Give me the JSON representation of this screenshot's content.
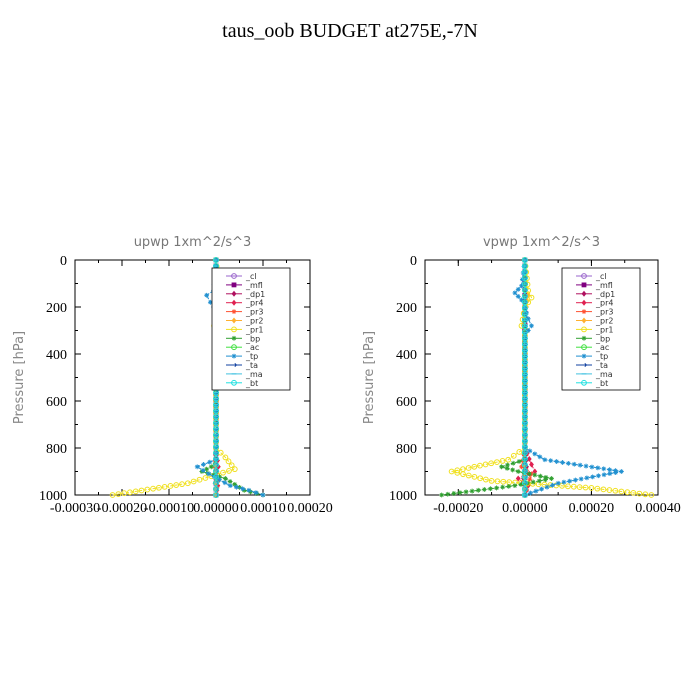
{
  "figure": {
    "title": "taus_oob  BUDGET at275E,-7N"
  },
  "chart_data": [
    {
      "type": "line",
      "title": "upwp   1xm^2/s^3",
      "xlabel": "",
      "ylabel": "Pressure [hPa]",
      "xlim": [
        -0.0003,
        0.0002
      ],
      "ylim": [
        1000,
        0
      ],
      "x_ticks": [
        -0.0003,
        -0.0002,
        -0.0001,
        0.0,
        0.0001,
        0.0002
      ],
      "x_tick_labels": [
        "-0.00030",
        "-0.00020",
        "-0.00010",
        "0.00000",
        "0.00010",
        "0.00020"
      ],
      "y_ticks": [
        0,
        200,
        400,
        600,
        800,
        1000
      ],
      "y_tick_labels": [
        "0",
        "200",
        "400",
        "600",
        "800",
        "1000"
      ],
      "legend": "top-right",
      "series": [
        {
          "name": "_cl",
          "color": "#9a66cc",
          "marker": "circle",
          "points": [
            [
              0,
              0
            ],
            [
              0,
              500
            ],
            [
              0,
              1000
            ]
          ]
        },
        {
          "name": "_mfl",
          "color": "#800080",
          "marker": "square",
          "points": [
            [
              0,
              0
            ],
            [
              0,
              200
            ],
            [
              0,
              500
            ],
            [
              0,
              800
            ],
            [
              0,
              1000
            ]
          ]
        },
        {
          "name": "_dp1",
          "color": "#b0105f",
          "marker": "diamond",
          "points": [
            [
              0,
              0
            ],
            [
              0,
              500
            ],
            [
              2e-06,
              900
            ],
            [
              -2e-06,
              950
            ],
            [
              0,
              1000
            ]
          ]
        },
        {
          "name": "_pr4",
          "color": "#e02050",
          "marker": "diamond",
          "points": [
            [
              0,
              0
            ],
            [
              0,
              800
            ],
            [
              5e-06,
              880
            ],
            [
              -4e-06,
              920
            ],
            [
              4e-06,
              960
            ],
            [
              0,
              1000
            ]
          ]
        },
        {
          "name": "_pr3",
          "color": "#ff5030",
          "marker": "star",
          "points": [
            [
              0,
              0
            ],
            [
              0,
              800
            ],
            [
              -3e-06,
              880
            ],
            [
              4e-06,
              940
            ],
            [
              0,
              1000
            ]
          ]
        },
        {
          "name": "_pr2",
          "color": "#ffb030",
          "marker": "diamond",
          "points": [
            [
              0,
              0
            ],
            [
              5e-06,
              150
            ],
            [
              1.2e-05,
              180
            ],
            [
              1e-05,
              200
            ],
            [
              0,
              250
            ],
            [
              0,
              800
            ],
            [
              0,
              1000
            ]
          ]
        },
        {
          "name": "_pr1",
          "color": "#f0e020",
          "marker": "circle",
          "points": [
            [
              0,
              0
            ],
            [
              8e-06,
              160
            ],
            [
              1.2e-05,
              190
            ],
            [
              0,
              230
            ],
            [
              -4e-06,
              280
            ],
            [
              3e-06,
              300
            ],
            [
              0,
              320
            ],
            [
              0,
              800
            ],
            [
              2e-05,
              840
            ],
            [
              4e-05,
              890
            ],
            [
              -6e-05,
              950
            ],
            [
              -0.00022,
              1000
            ]
          ]
        },
        {
          "name": "_bp",
          "color": "#30a030",
          "marker": "star",
          "points": [
            [
              0,
              0
            ],
            [
              0,
              850
            ],
            [
              -1e-05,
              880
            ],
            [
              -3e-05,
              900
            ],
            [
              2e-05,
              930
            ],
            [
              6e-05,
              980
            ],
            [
              0.0001,
              1000
            ]
          ]
        },
        {
          "name": "_ac",
          "color": "#40e040",
          "marker": "circle",
          "points": [
            [
              0,
              0
            ],
            [
              0,
              1000
            ]
          ]
        },
        {
          "name": "_tp",
          "color": "#2090d0",
          "marker": "star",
          "points": [
            [
              0,
              0
            ],
            [
              -5e-06,
              130
            ],
            [
              -2e-05,
              150
            ],
            [
              -1.2e-05,
              180
            ],
            [
              -5e-06,
              200
            ],
            [
              0,
              230
            ],
            [
              1e-05,
              280
            ],
            [
              0,
              320
            ],
            [
              0,
              850
            ],
            [
              -4e-05,
              880
            ],
            [
              -1.5e-05,
              910
            ],
            [
              3e-05,
              960
            ],
            [
              7e-05,
              980
            ],
            [
              0.0001,
              1000
            ]
          ]
        },
        {
          "name": "_ta",
          "color": "#1040a0",
          "marker": "arrow",
          "points": [
            [
              0,
              0
            ],
            [
              0,
              1000
            ]
          ]
        },
        {
          "name": "_ma",
          "color": "#40c0e0",
          "marker": "dash",
          "points": [
            [
              0,
              0
            ],
            [
              0,
              1000
            ]
          ]
        },
        {
          "name": "_bt",
          "color": "#20e0e0",
          "marker": "circle",
          "points": [
            [
              0,
              0
            ],
            [
              0,
              1000
            ]
          ]
        }
      ]
    },
    {
      "type": "line",
      "title": "vpwp   1xm^2/s^3",
      "xlabel": "",
      "ylabel": "Pressure [hPa]",
      "xlim": [
        -0.0003,
        0.0004
      ],
      "ylim": [
        1000,
        0
      ],
      "x_ticks": [
        -0.0002,
        0.0,
        0.0002,
        0.0004
      ],
      "x_tick_labels": [
        "-0.00020",
        "0.00000",
        "0.00020",
        "0.00040"
      ],
      "y_ticks": [
        0,
        200,
        400,
        600,
        800,
        1000
      ],
      "y_tick_labels": [
        "0",
        "200",
        "400",
        "600",
        "800",
        "1000"
      ],
      "legend": "top-right",
      "series": [
        {
          "name": "_cl",
          "color": "#9a66cc",
          "marker": "circle",
          "points": [
            [
              0,
              0
            ],
            [
              0,
              500
            ],
            [
              0,
              1000
            ]
          ]
        },
        {
          "name": "_mfl",
          "color": "#800080",
          "marker": "square",
          "points": [
            [
              0,
              0
            ],
            [
              0,
              200
            ],
            [
              0,
              500
            ],
            [
              0,
              800
            ],
            [
              0,
              1000
            ]
          ]
        },
        {
          "name": "_dp1",
          "color": "#b0105f",
          "marker": "diamond",
          "points": [
            [
              0,
              0
            ],
            [
              0,
              800
            ],
            [
              5e-06,
              880
            ],
            [
              -4e-06,
              930
            ],
            [
              0,
              1000
            ]
          ]
        },
        {
          "name": "_pr4",
          "color": "#e02050",
          "marker": "diamond",
          "points": [
            [
              0,
              0
            ],
            [
              0,
              800
            ],
            [
              2e-05,
              870
            ],
            [
              3e-05,
              900
            ],
            [
              -2e-05,
              930
            ],
            [
              1e-05,
              960
            ],
            [
              0,
              1000
            ]
          ]
        },
        {
          "name": "_pr3",
          "color": "#ff5030",
          "marker": "star",
          "points": [
            [
              0,
              0
            ],
            [
              0,
              800
            ],
            [
              -1e-05,
              880
            ],
            [
              2e-05,
              910
            ],
            [
              0,
              1000
            ]
          ]
        },
        {
          "name": "_pr2",
          "color": "#ffb030",
          "marker": "diamond",
          "points": [
            [
              0,
              0
            ],
            [
              5e-06,
              120
            ],
            [
              1e-05,
              150
            ],
            [
              5e-06,
              200
            ],
            [
              0,
              250
            ],
            [
              0,
              800
            ],
            [
              0,
              1000
            ]
          ]
        },
        {
          "name": "_pr1",
          "color": "#f0e020",
          "marker": "circle",
          "points": [
            [
              0,
              0
            ],
            [
              1e-05,
              130
            ],
            [
              2e-05,
              160
            ],
            [
              0,
              200
            ],
            [
              -1e-05,
              280
            ],
            [
              5e-06,
              300
            ],
            [
              0,
              320
            ],
            [
              0,
              800
            ],
            [
              -5e-05,
              850
            ],
            [
              -0.00022,
              900
            ],
            [
              -0.0001,
              940
            ],
            [
              0.0002,
              970
            ],
            [
              0.00038,
              1000
            ]
          ]
        },
        {
          "name": "_bp",
          "color": "#30a030",
          "marker": "star",
          "points": [
            [
              0,
              0
            ],
            [
              0,
              850
            ],
            [
              -7e-05,
              880
            ],
            [
              -2e-05,
              900
            ],
            [
              8e-05,
              930
            ],
            [
              -3e-05,
              960
            ],
            [
              -0.00025,
              1000
            ]
          ]
        },
        {
          "name": "_ac",
          "color": "#40e040",
          "marker": "circle",
          "points": [
            [
              0,
              0
            ],
            [
              0,
              1000
            ]
          ]
        },
        {
          "name": "_tp",
          "color": "#2090d0",
          "marker": "star",
          "points": [
            [
              0,
              0
            ],
            [
              -1e-05,
              110
            ],
            [
              -3e-05,
              140
            ],
            [
              -1e-05,
              170
            ],
            [
              0,
              200
            ],
            [
              1e-05,
              250
            ],
            [
              2e-05,
              280
            ],
            [
              0,
              320
            ],
            [
              0,
              800
            ],
            [
              6e-05,
              850
            ],
            [
              0.00029,
              900
            ],
            [
              0.0001,
              950
            ],
            [
              0,
              1000
            ]
          ]
        },
        {
          "name": "_ta",
          "color": "#1040a0",
          "marker": "arrow",
          "points": [
            [
              0,
              0
            ],
            [
              0,
              1000
            ]
          ]
        },
        {
          "name": "_ma",
          "color": "#40c0e0",
          "marker": "dash",
          "points": [
            [
              0,
              0
            ],
            [
              0,
              1000
            ]
          ]
        },
        {
          "name": "_bt",
          "color": "#20e0e0",
          "marker": "circle",
          "points": [
            [
              0,
              0
            ],
            [
              0,
              1000
            ]
          ]
        }
      ]
    }
  ]
}
